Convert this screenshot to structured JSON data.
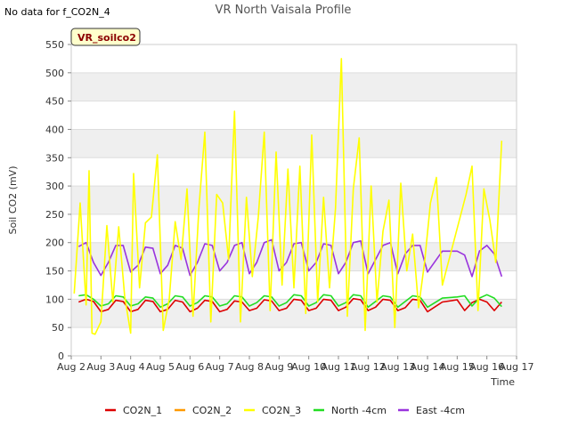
{
  "no_data_note": "No data for f_CO2N_4",
  "chart_data": {
    "type": "line",
    "title": "VR North Vaisala Profile",
    "site_badge": "VR_soilco2",
    "xlabel": "Time",
    "ylabel": "Soil CO2 (mV)",
    "x_unit": "days since Aug 2",
    "xlim": [
      0,
      15
    ],
    "ylim": [
      0,
      550
    ],
    "y_ticks": [
      0,
      50,
      100,
      150,
      200,
      250,
      300,
      350,
      400,
      450,
      500,
      550
    ],
    "x_ticks": [
      0,
      1,
      2,
      3,
      4,
      5,
      6,
      7,
      8,
      9,
      10,
      11,
      12,
      13,
      14,
      15
    ],
    "x_tick_labels": [
      "Aug 2",
      "Aug 3",
      "Aug 4",
      "Aug 5",
      "Aug 6",
      "Aug 7",
      "Aug 8",
      "Aug 9",
      "Aug 10",
      "Aug 11",
      "Aug 12",
      "Aug 13",
      "Aug 14",
      "Aug 15",
      "Aug 16",
      "Aug 17"
    ],
    "series": [
      {
        "name": "CO2N_1",
        "color": "#dd0000",
        "x": [
          0.25,
          0.5,
          0.75,
          1.0,
          1.25,
          1.5,
          1.75,
          2.0,
          2.25,
          2.5,
          2.75,
          3.0,
          3.25,
          3.5,
          3.75,
          4.0,
          4.25,
          4.5,
          4.75,
          5.0,
          5.25,
          5.5,
          5.75,
          6.0,
          6.25,
          6.5,
          6.75,
          7.0,
          7.25,
          7.5,
          7.75,
          8.0,
          8.25,
          8.5,
          8.75,
          9.0,
          9.25,
          9.5,
          9.75,
          10.0,
          10.25,
          10.5,
          10.75,
          11.0,
          11.25,
          11.5,
          11.75,
          12.0,
          12.5,
          13.0,
          13.25,
          13.5,
          13.75,
          14.0,
          14.25,
          14.5
        ],
        "y": [
          95,
          100,
          96,
          78,
          82,
          98,
          96,
          78,
          82,
          98,
          96,
          78,
          82,
          98,
          95,
          78,
          84,
          98,
          96,
          78,
          82,
          97,
          95,
          80,
          84,
          99,
          97,
          80,
          84,
          100,
          98,
          80,
          84,
          100,
          98,
          80,
          86,
          101,
          99,
          80,
          86,
          100,
          98,
          80,
          85,
          100,
          98,
          78,
          95,
          99,
          80,
          94,
          100,
          95,
          80,
          95
        ]
      },
      {
        "name": "CO2N_2",
        "color": "#ff9900",
        "x": [],
        "y": []
      },
      {
        "name": "CO2N_3",
        "color": "#ffff00",
        "x": [
          0.1,
          0.3,
          0.5,
          0.6,
          0.7,
          0.8,
          1.0,
          1.2,
          1.4,
          1.6,
          1.8,
          2.0,
          2.1,
          2.3,
          2.5,
          2.7,
          2.9,
          3.1,
          3.3,
          3.5,
          3.7,
          3.9,
          4.1,
          4.3,
          4.5,
          4.7,
          4.9,
          5.1,
          5.3,
          5.5,
          5.7,
          5.9,
          6.1,
          6.3,
          6.5,
          6.7,
          6.9,
          7.1,
          7.3,
          7.5,
          7.7,
          7.9,
          8.1,
          8.3,
          8.5,
          8.7,
          8.9,
          9.1,
          9.3,
          9.5,
          9.7,
          9.9,
          10.1,
          10.3,
          10.5,
          10.7,
          10.9,
          11.1,
          11.3,
          11.5,
          11.7,
          11.9,
          12.1,
          12.3,
          12.5,
          13.3,
          13.5,
          13.7,
          13.9,
          14.1,
          14.3,
          14.5
        ],
        "y": [
          110,
          270,
          90,
          327,
          40,
          38,
          60,
          230,
          95,
          228,
          105,
          40,
          322,
          120,
          235,
          245,
          355,
          45,
          100,
          237,
          170,
          295,
          70,
          260,
          395,
          60,
          285,
          270,
          170,
          432,
          60,
          280,
          140,
          245,
          395,
          80,
          360,
          125,
          330,
          120,
          335,
          75,
          390,
          95,
          280,
          120,
          260,
          525,
          70,
          295,
          385,
          45,
          300,
          95,
          220,
          275,
          50,
          305,
          150,
          215,
          85,
          165,
          270,
          315,
          125,
          285,
          335,
          80,
          295,
          240,
          165,
          380
        ]
      },
      {
        "name": "North -4cm",
        "color": "#22dd22",
        "x": [
          0.25,
          0.5,
          0.75,
          1.0,
          1.25,
          1.5,
          1.75,
          2.0,
          2.25,
          2.5,
          2.75,
          3.0,
          3.25,
          3.5,
          3.75,
          4.0,
          4.25,
          4.5,
          4.75,
          5.0,
          5.25,
          5.5,
          5.75,
          6.0,
          6.25,
          6.5,
          6.75,
          7.0,
          7.25,
          7.5,
          7.75,
          8.0,
          8.25,
          8.5,
          8.75,
          9.0,
          9.25,
          9.5,
          9.75,
          10.0,
          10.25,
          10.5,
          10.75,
          11.0,
          11.25,
          11.5,
          11.75,
          12.0,
          12.5,
          13.0,
          13.25,
          13.5,
          13.75,
          14.0,
          14.25,
          14.5
        ],
        "y": [
          106,
          108,
          100,
          88,
          92,
          106,
          104,
          88,
          92,
          104,
          102,
          86,
          92,
          106,
          104,
          88,
          94,
          106,
          104,
          88,
          92,
          106,
          104,
          88,
          94,
          106,
          104,
          88,
          94,
          108,
          106,
          88,
          94,
          108,
          106,
          88,
          94,
          108,
          106,
          86,
          96,
          106,
          104,
          86,
          96,
          106,
          104,
          86,
          102,
          104,
          106,
          88,
          102,
          108,
          102,
          87
        ]
      },
      {
        "name": "East -4cm",
        "color": "#9933dd",
        "x": [
          0.25,
          0.5,
          0.75,
          1.0,
          1.25,
          1.5,
          1.75,
          2.0,
          2.25,
          2.5,
          2.75,
          3.0,
          3.25,
          3.5,
          3.75,
          4.0,
          4.25,
          4.5,
          4.75,
          5.0,
          5.25,
          5.5,
          5.75,
          6.0,
          6.25,
          6.5,
          6.75,
          7.0,
          7.25,
          7.5,
          7.75,
          8.0,
          8.25,
          8.5,
          8.75,
          9.0,
          9.25,
          9.5,
          9.75,
          10.0,
          10.25,
          10.5,
          10.75,
          11.0,
          11.25,
          11.5,
          11.75,
          12.0,
          12.5,
          13.0,
          13.25,
          13.5,
          13.75,
          14.0,
          14.25,
          14.5
        ],
        "y": [
          193,
          200,
          165,
          142,
          165,
          195,
          195,
          148,
          160,
          192,
          190,
          145,
          160,
          195,
          190,
          142,
          165,
          198,
          195,
          150,
          165,
          195,
          200,
          145,
          165,
          200,
          205,
          150,
          165,
          198,
          200,
          150,
          165,
          198,
          195,
          145,
          165,
          200,
          203,
          145,
          170,
          195,
          200,
          145,
          180,
          195,
          195,
          148,
          185,
          185,
          178,
          140,
          185,
          195,
          180,
          140
        ]
      }
    ]
  }
}
